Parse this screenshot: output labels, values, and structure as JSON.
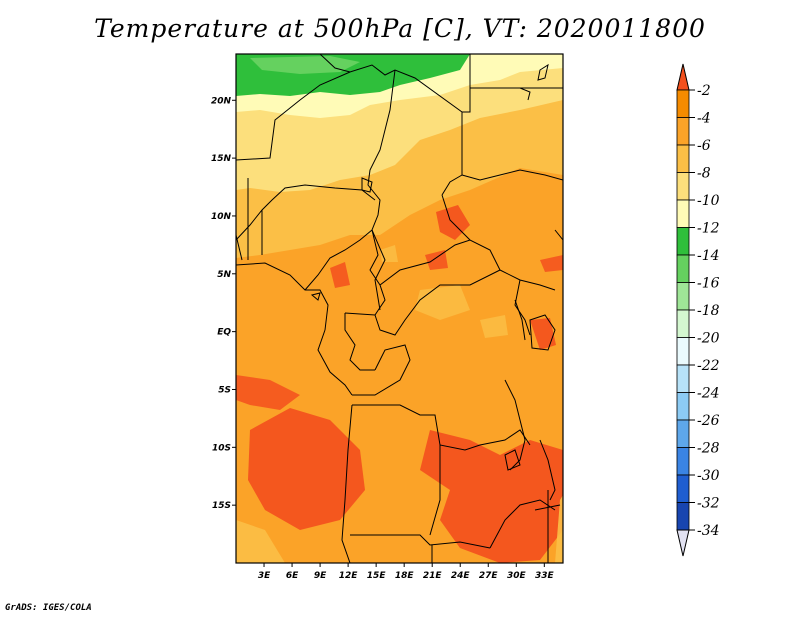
{
  "title": "Temperature at 500hPa [C], VT: 2020011800",
  "footer": "GrADS: IGES/COLA",
  "map": {
    "variable": "Temperature",
    "level": "500hPa",
    "units": "C",
    "valid_time": "2020011800",
    "lon_range": [
      0,
      35
    ],
    "lat_range": [
      -20,
      24
    ],
    "lat_ticks": [
      {
        "value": 20,
        "label": "20N"
      },
      {
        "value": 15,
        "label": "15N"
      },
      {
        "value": 10,
        "label": "10N"
      },
      {
        "value": 5,
        "label": "5N"
      },
      {
        "value": 0,
        "label": "EQ"
      },
      {
        "value": -5,
        "label": "5S"
      },
      {
        "value": -10,
        "label": "10S"
      },
      {
        "value": -15,
        "label": "15S"
      }
    ],
    "lon_ticks": [
      {
        "value": 3,
        "label": "3E"
      },
      {
        "value": 6,
        "label": "6E"
      },
      {
        "value": 9,
        "label": "9E"
      },
      {
        "value": 12,
        "label": "12E"
      },
      {
        "value": 15,
        "label": "15E"
      },
      {
        "value": 18,
        "label": "18E"
      },
      {
        "value": 21,
        "label": "21E"
      },
      {
        "value": 24,
        "label": "24E"
      },
      {
        "value": 27,
        "label": "27E"
      },
      {
        "value": 30,
        "label": "30E"
      },
      {
        "value": 33,
        "label": "33E"
      }
    ]
  },
  "colorbar": {
    "levels": [
      "-2",
      "-4",
      "-6",
      "-8",
      "-10",
      "-12",
      "-14",
      "-16",
      "-18",
      "-20",
      "-22",
      "-24",
      "-26",
      "-28",
      "-30",
      "-32",
      "-34"
    ],
    "colors": [
      "#f3501d",
      "#f58b00",
      "#fba328",
      "#fbbf46",
      "#fcdf7c",
      "#fffbb7",
      "#2fbf3b",
      "#65d15f",
      "#9fe597",
      "#d4f7d0",
      "#eafafd",
      "#b7e2f8",
      "#8ccbf4",
      "#5ea7eb",
      "#3a84e4",
      "#1f5ed0",
      "#1845b0",
      "#0d1b6e",
      "#e2e2f2"
    ],
    "top_triangle_color": "#f3501d",
    "bottom_triangle_color": "#e2e2f2"
  }
}
